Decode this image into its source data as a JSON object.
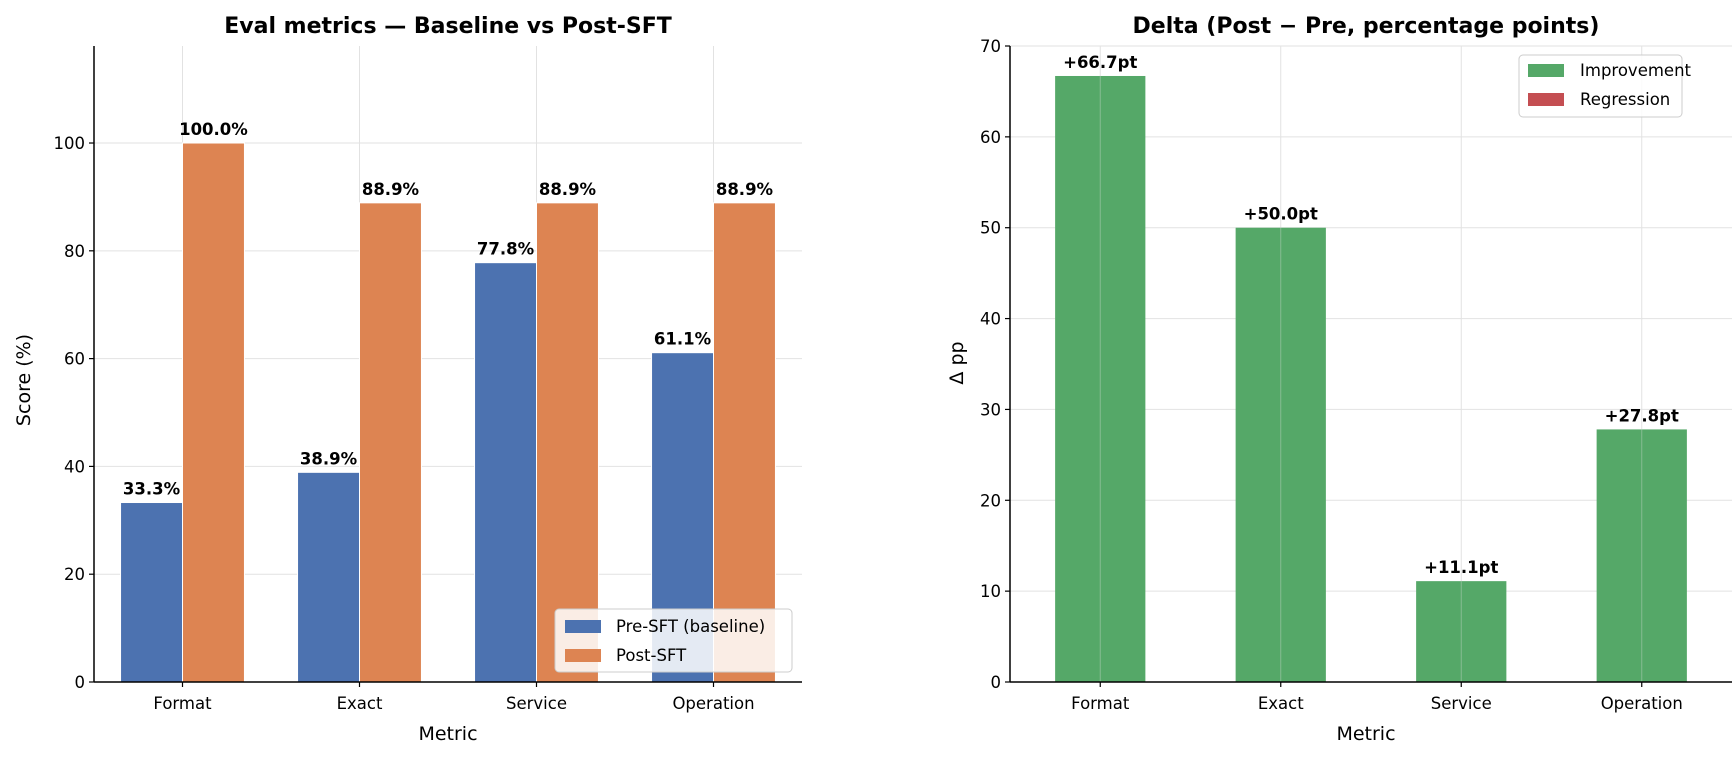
{
  "chart_data": [
    {
      "type": "bar",
      "title": "Eval metrics — Baseline vs Post-SFT",
      "xlabel": "Metric",
      "ylabel": "Score (%)",
      "categories": [
        "Format",
        "Exact",
        "Service",
        "Operation"
      ],
      "ylim": [
        0,
        118
      ],
      "yticks": [
        0,
        20,
        40,
        60,
        80,
        100
      ],
      "grid": true,
      "legend_position": "lower-right",
      "series": [
        {
          "name": "Pre-SFT (baseline)",
          "color": "#4c72b0",
          "values": [
            33.3,
            38.9,
            77.8,
            61.1
          ],
          "labels": [
            "33.3%",
            "38.9%",
            "77.8%",
            "61.1%"
          ]
        },
        {
          "name": "Post-SFT",
          "color": "#dd8452",
          "values": [
            100.0,
            88.9,
            88.9,
            88.9
          ],
          "labels": [
            "100.0%",
            "88.9%",
            "88.9%",
            "88.9%"
          ]
        }
      ]
    },
    {
      "type": "bar",
      "title": "Delta (Post − Pre, percentage points)",
      "xlabel": "Metric",
      "ylabel": "Δ pp",
      "categories": [
        "Format",
        "Exact",
        "Service",
        "Operation"
      ],
      "ylim": [
        0,
        70
      ],
      "yticks": [
        0,
        10,
        20,
        30,
        40,
        50,
        60,
        70
      ],
      "grid": true,
      "legend_position": "upper-right",
      "values": [
        66.7,
        50.0,
        11.1,
        27.8
      ],
      "labels": [
        "+66.7pt",
        "+50.0pt",
        "+11.1pt",
        "+27.8pt"
      ],
      "positive_color": "#55a868",
      "negative_color": "#c44e52",
      "legend": [
        {
          "name": "Improvement",
          "color": "#55a868"
        },
        {
          "name": "Regression",
          "color": "#c44e52"
        }
      ]
    }
  ]
}
